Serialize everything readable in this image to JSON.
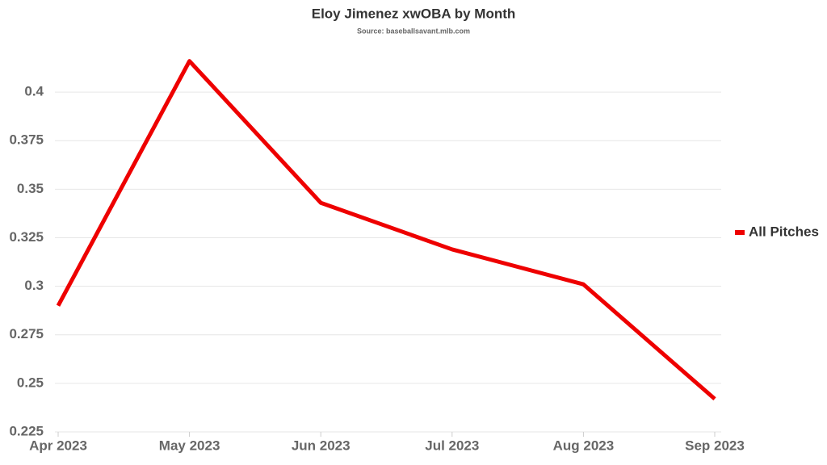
{
  "chart_data": {
    "type": "line",
    "title": "Eloy Jimenez xwOBA by Month",
    "subtitle": "Source: baseballsavant.mlb.com",
    "categories": [
      "Apr 2023",
      "May 2023",
      "Jun 2023",
      "Jul 2023",
      "Aug 2023",
      "Sep 2023"
    ],
    "series": [
      {
        "name": "All Pitches",
        "color": "#ee0000",
        "values": [
          0.29,
          0.416,
          0.343,
          0.319,
          0.301,
          0.242
        ]
      }
    ],
    "ylim": [
      0.225,
      0.425
    ],
    "yticks": [
      0.225,
      0.25,
      0.275,
      0.3,
      0.325,
      0.35,
      0.375,
      0.4
    ],
    "grid": true,
    "legend": "right"
  }
}
